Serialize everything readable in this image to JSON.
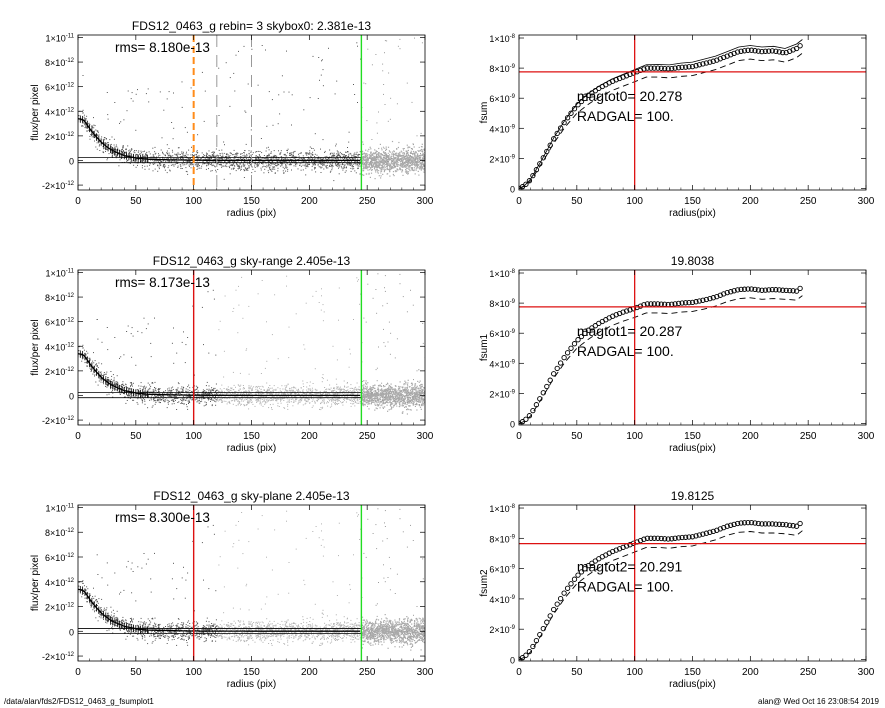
{
  "chart_data": [
    {
      "type": "scatter",
      "title": "FDS12_0463_g rebin= 3    skybox0:  2.381e-13",
      "annotation": "rms= 8.180e-13",
      "xlabel": "radius (pix)",
      "ylabel": "flux/per pixel",
      "xlim": [
        0,
        300
      ],
      "ylim": [
        -2.4e-12,
        1.02e-11
      ],
      "xticks": [
        "0",
        "50",
        "100",
        "150",
        "200",
        "250",
        "300"
      ],
      "yticks": [
        {
          "mant": "-2×10",
          "exp": "-12",
          "v": -2e-12
        },
        {
          "mant": "0",
          "exp": "",
          "v": 0
        },
        {
          "mant": "2×10",
          "exp": "-12",
          "v": 2e-12
        },
        {
          "mant": "4×10",
          "exp": "-12",
          "v": 4e-12
        },
        {
          "mant": "6×10",
          "exp": "-12",
          "v": 6e-12
        },
        {
          "mant": "8×10",
          "exp": "-12",
          "v": 8e-12
        },
        {
          "mant": "1×10",
          "exp": "-11",
          "v": 1e-11
        }
      ],
      "profile": {
        "x": [
          0,
          5,
          10,
          15,
          20,
          25,
          30,
          40,
          50,
          60,
          80,
          100,
          150,
          200,
          245
        ],
        "y": [
          3.4e-12,
          3.3e-12,
          2.6e-12,
          2e-12,
          1.5e-12,
          1.1e-12,
          8e-13,
          4e-13,
          2e-13,
          1e-13,
          5e-14,
          2e-14,
          1e-14,
          1e-14,
          1e-14
        ]
      },
      "rms_band": [
        -1.8e-13,
        2.3e-13
      ],
      "vlines": [
        {
          "x": 100,
          "color": "#ff8c1a",
          "style": "dashed",
          "width": 2
        },
        {
          "x": 120,
          "color": "#999999",
          "style": "dashed",
          "width": 1
        },
        {
          "x": 150,
          "color": "#999999",
          "style": "dashed",
          "width": 1
        },
        {
          "x": 245,
          "color": "#22dd22",
          "style": "solid",
          "width": 1.4
        }
      ],
      "hlines": []
    },
    {
      "type": "line",
      "title": "",
      "xlabel": "radius(pix)",
      "ylabel": "fsum",
      "xlim": [
        0,
        300
      ],
      "ylim": [
        -1e-10,
        1.02e-08
      ],
      "xticks": [
        "0",
        "50",
        "100",
        "150",
        "200",
        "250",
        "300"
      ],
      "yticks": [
        {
          "mant": "0",
          "exp": "",
          "v": 0
        },
        {
          "mant": "2×10",
          "exp": "-9",
          "v": 2e-09
        },
        {
          "mant": "4×10",
          "exp": "-9",
          "v": 4e-09
        },
        {
          "mant": "6×10",
          "exp": "-9",
          "v": 6e-09
        },
        {
          "mant": "8×10",
          "exp": "-9",
          "v": 8e-09
        },
        {
          "mant": "1×10",
          "exp": "-8",
          "v": 1e-08
        }
      ],
      "annotations": [
        "magtot0=  20.278",
        "RADGAL=    100."
      ],
      "curve": {
        "x": [
          0,
          5,
          10,
          20,
          30,
          40,
          50,
          60,
          70,
          80,
          90,
          100,
          110,
          120,
          130,
          140,
          150,
          160,
          170,
          180,
          190,
          200,
          210,
          220,
          230,
          240,
          245
        ],
        "y": [
          0,
          2e-10,
          6e-10,
          1.9e-09,
          3.3e-09,
          4.5e-09,
          5.5e-09,
          6.2e-09,
          6.7e-09,
          7.1e-09,
          7.4e-09,
          7.7e-09,
          8e-09,
          8e-09,
          7.95e-09,
          8.05e-09,
          8.1e-09,
          8.3e-09,
          8.5e-09,
          8.8e-09,
          9.1e-09,
          9.2e-09,
          9.1e-09,
          9.15e-09,
          9e-09,
          9.3e-09,
          9.6e-09
        ]
      },
      "lower_offset": -6e-10,
      "upper_offset": 3e-10,
      "vlines": [
        {
          "x": 100,
          "color": "#dd1111",
          "style": "solid",
          "width": 1.3
        }
      ],
      "hlines": [
        {
          "y": 7.75e-09,
          "color": "#dd1111",
          "width": 1.3
        }
      ]
    },
    {
      "type": "scatter",
      "title": "FDS12_0463_g sky-range  2.405e-13",
      "annotation": "rms= 8.173e-13",
      "xlabel": "radius (pix)",
      "ylabel": "flux/per pixel",
      "xlim": [
        0,
        300
      ],
      "ylim": [
        -2.4e-12,
        1.02e-11
      ],
      "xticks": [
        "0",
        "50",
        "100",
        "150",
        "200",
        "250",
        "300"
      ],
      "yticks": [
        {
          "mant": "-2×10",
          "exp": "-12",
          "v": -2e-12
        },
        {
          "mant": "0",
          "exp": "",
          "v": 0
        },
        {
          "mant": "2×10",
          "exp": "-12",
          "v": 2e-12
        },
        {
          "mant": "4×10",
          "exp": "-12",
          "v": 4e-12
        },
        {
          "mant": "6×10",
          "exp": "-12",
          "v": 6e-12
        },
        {
          "mant": "8×10",
          "exp": "-12",
          "v": 8e-12
        },
        {
          "mant": "1×10",
          "exp": "-11",
          "v": 1e-11
        }
      ],
      "profile": {
        "x": [
          0,
          5,
          10,
          15,
          20,
          25,
          30,
          40,
          50,
          60,
          80,
          100,
          150,
          200,
          245
        ],
        "y": [
          3.4e-12,
          3.3e-12,
          2.6e-12,
          2e-12,
          1.5e-12,
          1.1e-12,
          8e-13,
          4e-13,
          2e-13,
          1e-13,
          5e-14,
          2e-14,
          1e-14,
          1e-14,
          1e-14
        ]
      },
      "rms_band": [
        -1.8e-13,
        2.3e-13
      ],
      "vlines": [
        {
          "x": 100,
          "color": "#dd1111",
          "style": "solid",
          "width": 1.4
        },
        {
          "x": 245,
          "color": "#22dd22",
          "style": "solid",
          "width": 1.4
        }
      ],
      "hlines": []
    },
    {
      "type": "line",
      "title": "19.8038",
      "xlabel": "radius(pix)",
      "ylabel": "fsum1",
      "xlim": [
        0,
        300
      ],
      "ylim": [
        -1e-10,
        1.02e-08
      ],
      "xticks": [
        "0",
        "50",
        "100",
        "150",
        "200",
        "250",
        "300"
      ],
      "yticks": [
        {
          "mant": "0",
          "exp": "",
          "v": 0
        },
        {
          "mant": "2×10",
          "exp": "-9",
          "v": 2e-09
        },
        {
          "mant": "4×10",
          "exp": "-9",
          "v": 4e-09
        },
        {
          "mant": "6×10",
          "exp": "-9",
          "v": 6e-09
        },
        {
          "mant": "8×10",
          "exp": "-9",
          "v": 8e-09
        },
        {
          "mant": "1×10",
          "exp": "-8",
          "v": 1e-08
        }
      ],
      "annotations": [
        "magtot1=  20.287",
        "RADGAL=    100."
      ],
      "curve": {
        "x": [
          0,
          5,
          10,
          20,
          30,
          40,
          50,
          60,
          70,
          80,
          90,
          100,
          110,
          120,
          130,
          140,
          150,
          160,
          170,
          180,
          190,
          200,
          210,
          220,
          230,
          240,
          245
        ],
        "y": [
          0,
          2e-10,
          6e-10,
          1.9e-09,
          3.3e-09,
          4.5e-09,
          5.5e-09,
          6.2e-09,
          6.7e-09,
          7.1e-09,
          7.4e-09,
          7.65e-09,
          7.95e-09,
          7.95e-09,
          7.9e-09,
          8e-09,
          8.05e-09,
          8.2e-09,
          8.4e-09,
          8.7e-09,
          8.9e-09,
          8.95e-09,
          8.85e-09,
          8.9e-09,
          8.85e-09,
          8.8e-09,
          9.1e-09
        ]
      },
      "lower_offset": -6e-10,
      "upper_offset": 0,
      "vlines": [
        {
          "x": 100,
          "color": "#dd1111",
          "style": "solid",
          "width": 1.3
        }
      ],
      "hlines": [
        {
          "y": 7.75e-09,
          "color": "#dd1111",
          "width": 1.3
        }
      ]
    },
    {
      "type": "scatter",
      "title": "FDS12_0463_g sky-plane  2.405e-13",
      "annotation": "rms= 8.300e-13",
      "xlabel": "radius (pix)",
      "ylabel": "flux/per pixel",
      "xlim": [
        0,
        300
      ],
      "ylim": [
        -2.4e-12,
        1.02e-11
      ],
      "xticks": [
        "0",
        "50",
        "100",
        "150",
        "200",
        "250",
        "300"
      ],
      "yticks": [
        {
          "mant": "-2×10",
          "exp": "-12",
          "v": -2e-12
        },
        {
          "mant": "0",
          "exp": "",
          "v": 0
        },
        {
          "mant": "2×10",
          "exp": "-12",
          "v": 2e-12
        },
        {
          "mant": "4×10",
          "exp": "-12",
          "v": 4e-12
        },
        {
          "mant": "6×10",
          "exp": "-12",
          "v": 6e-12
        },
        {
          "mant": "8×10",
          "exp": "-12",
          "v": 8e-12
        },
        {
          "mant": "1×10",
          "exp": "-11",
          "v": 1e-11
        }
      ],
      "profile": {
        "x": [
          0,
          5,
          10,
          15,
          20,
          25,
          30,
          40,
          50,
          60,
          80,
          100,
          150,
          200,
          245
        ],
        "y": [
          3.4e-12,
          3.3e-12,
          2.6e-12,
          2e-12,
          1.5e-12,
          1.1e-12,
          8e-13,
          4e-13,
          2e-13,
          1e-13,
          5e-14,
          2e-14,
          1e-14,
          1e-14,
          1e-14
        ]
      },
      "rms_band": [
        -1.8e-13,
        2.3e-13
      ],
      "vlines": [
        {
          "x": 100,
          "color": "#dd1111",
          "style": "solid",
          "width": 1.4
        },
        {
          "x": 245,
          "color": "#22dd22",
          "style": "solid",
          "width": 1.4
        }
      ],
      "hlines": []
    },
    {
      "type": "line",
      "title": "19.8125",
      "xlabel": "radius(pix)",
      "ylabel": "fsum2",
      "xlim": [
        0,
        300
      ],
      "ylim": [
        -1e-10,
        1.02e-08
      ],
      "xticks": [
        "0",
        "50",
        "100",
        "150",
        "200",
        "250",
        "300"
      ],
      "yticks": [
        {
          "mant": "0",
          "exp": "",
          "v": 0
        },
        {
          "mant": "2×10",
          "exp": "-9",
          "v": 2e-09
        },
        {
          "mant": "4×10",
          "exp": "-9",
          "v": 4e-09
        },
        {
          "mant": "6×10",
          "exp": "-9",
          "v": 6e-09
        },
        {
          "mant": "8×10",
          "exp": "-9",
          "v": 8e-09
        },
        {
          "mant": "1×10",
          "exp": "-8",
          "v": 1e-08
        }
      ],
      "annotations": [
        "magtot2=  20.291",
        "RADGAL=    100."
      ],
      "curve": {
        "x": [
          0,
          5,
          10,
          20,
          30,
          40,
          50,
          60,
          70,
          80,
          90,
          100,
          110,
          120,
          130,
          140,
          150,
          160,
          170,
          180,
          190,
          200,
          210,
          220,
          230,
          240,
          245
        ],
        "y": [
          0,
          2e-10,
          6e-10,
          1.9e-09,
          3.3e-09,
          4.5e-09,
          5.5e-09,
          6.2e-09,
          6.7e-09,
          7.1e-09,
          7.4e-09,
          7.7e-09,
          8e-09,
          8e-09,
          7.95e-09,
          8.05e-09,
          8.1e-09,
          8.3e-09,
          8.5e-09,
          8.8e-09,
          9e-09,
          9.05e-09,
          8.95e-09,
          8.95e-09,
          8.9e-09,
          8.8e-09,
          9.1e-09
        ]
      },
      "lower_offset": -6e-10,
      "upper_offset": 0,
      "vlines": [
        {
          "x": 100,
          "color": "#dd1111",
          "style": "solid",
          "width": 1.3
        }
      ],
      "hlines": [
        {
          "y": 7.65e-09,
          "color": "#dd1111",
          "width": 1.3
        }
      ]
    }
  ],
  "footer": {
    "left": "/data/alan/fds2/FDS12_0463_g_fsumplot1",
    "right": "alan@  Wed Oct 16 23:08:54 2019"
  }
}
